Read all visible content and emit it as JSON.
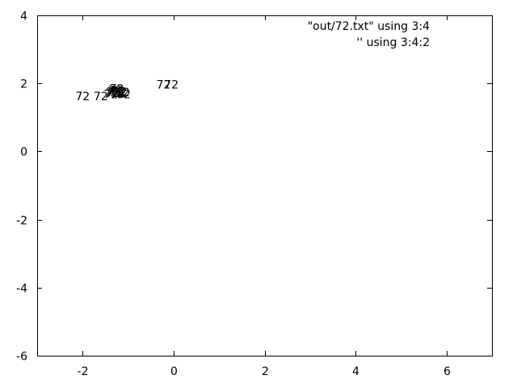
{
  "chart_data": {
    "type": "scatter",
    "title": "",
    "xlabel": "",
    "ylabel": "",
    "xlim": [
      -3,
      7
    ],
    "ylim": [
      -6,
      4
    ],
    "xticks": [
      "-2",
      "0",
      "2",
      "4",
      "6"
    ],
    "yticks": [
      "-6",
      "-4",
      "-2",
      "0",
      "2",
      "4"
    ],
    "xtick_values": [
      -2,
      0,
      2,
      4,
      6
    ],
    "ytick_values": [
      -6,
      -4,
      -2,
      0,
      2,
      4
    ],
    "legend_position": "top-right",
    "legend": [
      "\"out/72.txt\" using 3:4",
      "'' using 3:4:2"
    ],
    "series": [
      {
        "name": "\"out/72.txt\" using 3:4",
        "style": "points",
        "color": "#000000",
        "points": []
      },
      {
        "name": "'' using 3:4:2",
        "style": "labels",
        "color": "#000000",
        "label_text": "72",
        "points": [
          {
            "x": -2.0,
            "y": 1.62
          },
          {
            "x": -1.6,
            "y": 1.62
          },
          {
            "x": -1.38,
            "y": 1.68
          },
          {
            "x": -1.34,
            "y": 1.72
          },
          {
            "x": -1.31,
            "y": 1.76
          },
          {
            "x": -1.28,
            "y": 1.8
          },
          {
            "x": -1.26,
            "y": 1.74
          },
          {
            "x": -1.24,
            "y": 1.7
          },
          {
            "x": -1.22,
            "y": 1.78
          },
          {
            "x": -1.2,
            "y": 1.72
          },
          {
            "x": -1.18,
            "y": 1.76
          },
          {
            "x": -1.25,
            "y": 1.85
          },
          {
            "x": -1.12,
            "y": 1.74
          },
          {
            "x": -1.1,
            "y": 1.68
          },
          {
            "x": -0.22,
            "y": 1.97
          },
          {
            "x": -0.05,
            "y": 1.97
          }
        ]
      }
    ]
  }
}
